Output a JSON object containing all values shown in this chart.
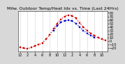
{
  "title": "Milw. Outdoor Temp/Heat Idx vs. Time (Last 24Hrs)",
  "bg_color": "#d8d8d8",
  "plot_bg": "#ffffff",
  "ylim": [
    -30,
    85
  ],
  "yticks": [
    -20,
    -10,
    0,
    10,
    20,
    30,
    40,
    50,
    60,
    70,
    80
  ],
  "grid_color": "#999999",
  "red_x": [
    0,
    1,
    2,
    3,
    4,
    5,
    6,
    7,
    8,
    9,
    10,
    11,
    12,
    13,
    14,
    15,
    16,
    17,
    18,
    19,
    20,
    21,
    22,
    23
  ],
  "red_y": [
    -18,
    -20,
    -22,
    -18,
    -14,
    -10,
    -5,
    5,
    18,
    35,
    50,
    62,
    70,
    74,
    72,
    65,
    52,
    40,
    30,
    22,
    15,
    9,
    5,
    2
  ],
  "blue_x": [
    9,
    10,
    11,
    12,
    13,
    14,
    15,
    16,
    17,
    18,
    19,
    20
  ],
  "blue_y": [
    30,
    43,
    53,
    58,
    59,
    57,
    50,
    40,
    30,
    22,
    16,
    10
  ],
  "red_color": "#cc0000",
  "blue_color": "#0000cc",
  "title_fontsize": 4.5,
  "tick_fontsize": 3.5,
  "line_width": 0.9,
  "marker_size": 1.5,
  "xtick_step": 2
}
